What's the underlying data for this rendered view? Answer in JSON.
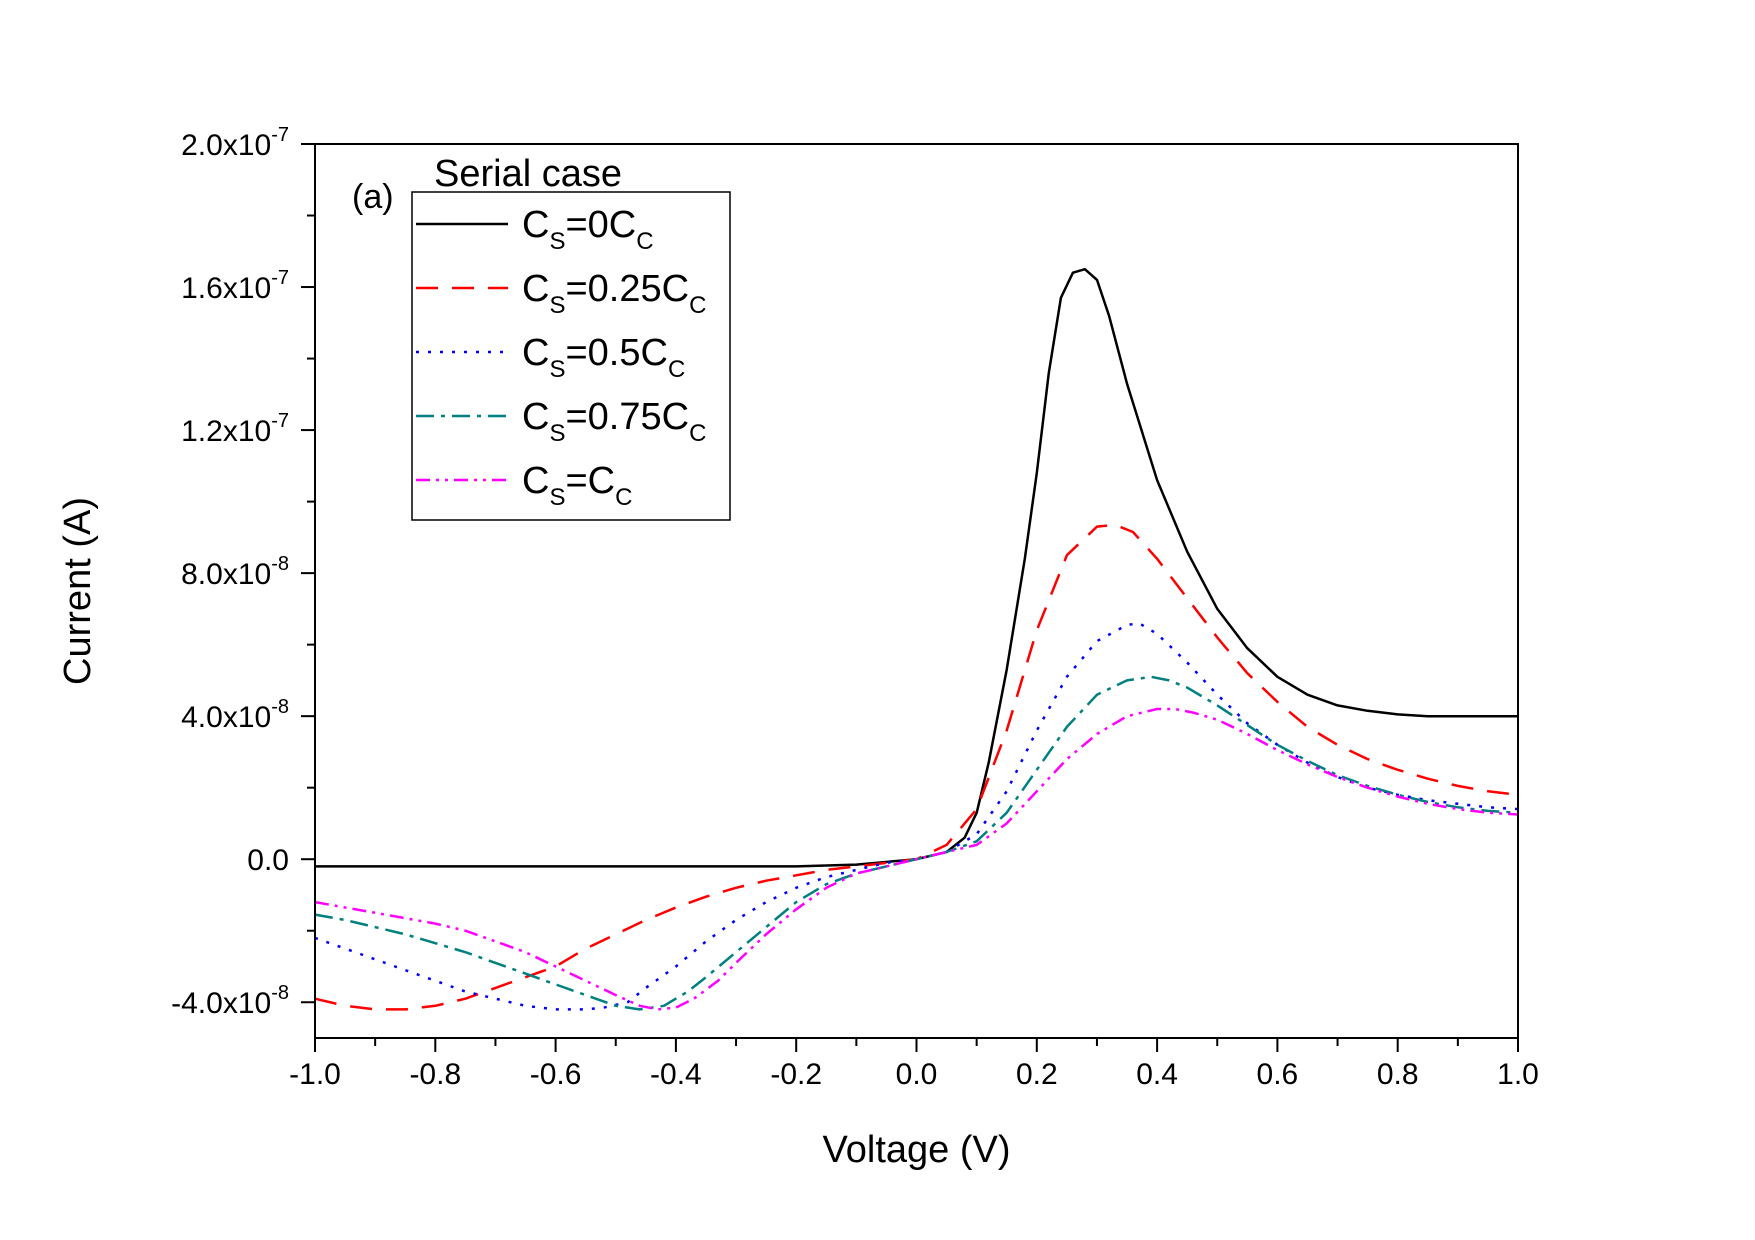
{
  "chart_data": {
    "type": "line",
    "panel_label": "(a)",
    "xlabel": "Voltage (V)",
    "ylabel": "Current (A)",
    "xlim": [
      -1.0,
      1.0
    ],
    "ylim": [
      -5e-08,
      2e-07
    ],
    "x_ticks": [
      -1.0,
      -0.8,
      -0.6,
      -0.4,
      -0.2,
      0.0,
      0.2,
      0.4,
      0.6,
      0.8,
      1.0
    ],
    "x_tick_labels": [
      "-1.0",
      "-0.8",
      "-0.6",
      "-0.4",
      "-0.2",
      "0.0",
      "0.2",
      "0.4",
      "0.6",
      "0.8",
      "1.0"
    ],
    "y_ticks": [
      -4e-08,
      0.0,
      4e-08,
      8e-08,
      1.2e-07,
      1.6e-07,
      2e-07
    ],
    "y_tick_labels": [
      {
        "mantissa": "-4.0x10",
        "exp": "-8"
      },
      {
        "mantissa": "0.0",
        "exp": ""
      },
      {
        "mantissa": "4.0x10",
        "exp": "-8"
      },
      {
        "mantissa": "8.0x10",
        "exp": "-8"
      },
      {
        "mantissa": "1.2x10",
        "exp": "-7"
      },
      {
        "mantissa": "1.6x10",
        "exp": "-7"
      },
      {
        "mantissa": "2.0x10",
        "exp": "-7"
      }
    ],
    "legend": {
      "title": "Serial case",
      "position": "top-left",
      "entries": [
        {
          "prefix": "C",
          "sub1": "S",
          "mid": "=0C",
          "sub2": "C"
        },
        {
          "prefix": "C",
          "sub1": "S",
          "mid": "=0.25C",
          "sub2": "C"
        },
        {
          "prefix": "C",
          "sub1": "S",
          "mid": "=0.5C",
          "sub2": "C"
        },
        {
          "prefix": "C",
          "sub1": "S",
          "mid": "=0.75C",
          "sub2": "C"
        },
        {
          "prefix": "C",
          "sub1": "S",
          "mid": "=C",
          "sub2": "C"
        }
      ]
    },
    "series": [
      {
        "name": "CS=0CC",
        "color": "#000000",
        "dash": "solid",
        "x": [
          -1.0,
          -0.9,
          -0.8,
          -0.7,
          -0.6,
          -0.5,
          -0.4,
          -0.3,
          -0.2,
          -0.1,
          0.0,
          0.05,
          0.08,
          0.1,
          0.12,
          0.15,
          0.18,
          0.2,
          0.22,
          0.24,
          0.26,
          0.28,
          0.3,
          0.32,
          0.35,
          0.4,
          0.45,
          0.5,
          0.55,
          0.6,
          0.65,
          0.7,
          0.75,
          0.8,
          0.85,
          0.9,
          0.95,
          1.0
        ],
        "y": [
          -2e-09,
          -2e-09,
          -2e-09,
          -2e-09,
          -2e-09,
          -2e-09,
          -2e-09,
          -2e-09,
          -2e-09,
          -1.5e-09,
          0,
          2e-09,
          6e-09,
          1.3e-08,
          2.7e-08,
          5.3e-08,
          8.4e-08,
          1.08e-07,
          1.36e-07,
          1.57e-07,
          1.64e-07,
          1.65e-07,
          1.62e-07,
          1.52e-07,
          1.33e-07,
          1.06e-07,
          8.6e-08,
          7e-08,
          5.9e-08,
          5.1e-08,
          4.6e-08,
          4.3e-08,
          4.15e-08,
          4.05e-08,
          4e-08,
          4e-08,
          4e-08,
          4e-08
        ]
      },
      {
        "name": "CS=0.25CC",
        "color": "#ff0000",
        "dash": "22 14",
        "x": [
          -1.0,
          -0.95,
          -0.9,
          -0.85,
          -0.8,
          -0.75,
          -0.7,
          -0.65,
          -0.6,
          -0.55,
          -0.5,
          -0.45,
          -0.4,
          -0.35,
          -0.3,
          -0.25,
          -0.2,
          -0.15,
          -0.1,
          -0.05,
          0.0,
          0.05,
          0.1,
          0.15,
          0.2,
          0.25,
          0.3,
          0.33,
          0.36,
          0.4,
          0.45,
          0.5,
          0.55,
          0.6,
          0.65,
          0.7,
          0.75,
          0.8,
          0.85,
          0.9,
          0.95,
          1.0
        ],
        "y": [
          -3.9e-08,
          -4.1e-08,
          -4.2e-08,
          -4.2e-08,
          -4.1e-08,
          -3.9e-08,
          -3.6e-08,
          -3.3e-08,
          -3e-08,
          -2.5e-08,
          -2.1e-08,
          -1.7e-08,
          -1.35e-08,
          -1.05e-08,
          -8e-09,
          -6e-09,
          -4.5e-09,
          -3e-09,
          -2e-09,
          -1e-09,
          0,
          4e-09,
          1.4e-08,
          3.6e-08,
          6.4e-08,
          8.5e-08,
          9.3e-08,
          9.35e-08,
          9.15e-08,
          8.4e-08,
          7.3e-08,
          6.2e-08,
          5.2e-08,
          4.4e-08,
          3.7e-08,
          3.2e-08,
          2.8e-08,
          2.5e-08,
          2.25e-08,
          2.05e-08,
          1.9e-08,
          1.8e-08
        ]
      },
      {
        "name": "CS=0.5CC",
        "color": "#0000ff",
        "dash": "3 9",
        "x": [
          -1.0,
          -0.95,
          -0.9,
          -0.85,
          -0.8,
          -0.75,
          -0.7,
          -0.65,
          -0.6,
          -0.55,
          -0.52,
          -0.48,
          -0.45,
          -0.4,
          -0.35,
          -0.3,
          -0.25,
          -0.2,
          -0.15,
          -0.1,
          -0.05,
          0.0,
          0.05,
          0.1,
          0.15,
          0.2,
          0.25,
          0.3,
          0.35,
          0.37,
          0.4,
          0.45,
          0.5,
          0.55,
          0.6,
          0.65,
          0.7,
          0.75,
          0.8,
          0.85,
          0.9,
          0.95,
          1.0
        ],
        "y": [
          -2.2e-08,
          -2.5e-08,
          -2.8e-08,
          -3.1e-08,
          -3.4e-08,
          -3.7e-08,
          -3.9e-08,
          -4.1e-08,
          -4.2e-08,
          -4.2e-08,
          -4.15e-08,
          -4e-08,
          -3.6e-08,
          -3e-08,
          -2.3e-08,
          -1.7e-08,
          -1.2e-08,
          -8e-09,
          -5e-09,
          -3e-09,
          -1e-09,
          0,
          2e-09,
          7e-09,
          1.9e-08,
          3.6e-08,
          5.1e-08,
          6.1e-08,
          6.55e-08,
          6.6e-08,
          6.3e-08,
          5.5e-08,
          4.6e-08,
          3.8e-08,
          3.2e-08,
          2.7e-08,
          2.3e-08,
          2e-08,
          1.8e-08,
          1.65e-08,
          1.55e-08,
          1.45e-08,
          1.4e-08
        ]
      },
      {
        "name": "CS=0.75CC",
        "color": "#008080",
        "dash": "18 7 4 7",
        "x": [
          -1.0,
          -0.95,
          -0.9,
          -0.85,
          -0.8,
          -0.75,
          -0.7,
          -0.65,
          -0.6,
          -0.55,
          -0.5,
          -0.46,
          -0.42,
          -0.38,
          -0.35,
          -0.3,
          -0.25,
          -0.2,
          -0.15,
          -0.1,
          -0.05,
          0.0,
          0.05,
          0.1,
          0.15,
          0.2,
          0.25,
          0.3,
          0.35,
          0.39,
          0.42,
          0.45,
          0.5,
          0.55,
          0.6,
          0.65,
          0.7,
          0.75,
          0.8,
          0.85,
          0.9,
          0.95,
          1.0
        ],
        "y": [
          -1.55e-08,
          -1.7e-08,
          -1.9e-08,
          -2.1e-08,
          -2.35e-08,
          -2.6e-08,
          -2.9e-08,
          -3.2e-08,
          -3.5e-08,
          -3.8e-08,
          -4.1e-08,
          -4.2e-08,
          -4.1e-08,
          -3.7e-08,
          -3.3e-08,
          -2.6e-08,
          -1.9e-08,
          -1.2e-08,
          -7e-09,
          -4e-09,
          -2e-09,
          0,
          2e-09,
          5e-09,
          1.3e-08,
          2.5e-08,
          3.7e-08,
          4.6e-08,
          5e-08,
          5.1e-08,
          5e-08,
          4.8e-08,
          4.3e-08,
          3.75e-08,
          3.2e-08,
          2.75e-08,
          2.35e-08,
          2.05e-08,
          1.8e-08,
          1.6e-08,
          1.45e-08,
          1.35e-08,
          1.3e-08
        ]
      },
      {
        "name": "CS=CC",
        "color": "#ff00ff",
        "dash": "14 6 3 6 3 6",
        "x": [
          -1.0,
          -0.95,
          -0.9,
          -0.85,
          -0.8,
          -0.75,
          -0.7,
          -0.65,
          -0.6,
          -0.55,
          -0.5,
          -0.46,
          -0.43,
          -0.4,
          -0.37,
          -0.33,
          -0.3,
          -0.25,
          -0.2,
          -0.15,
          -0.1,
          -0.05,
          0.0,
          0.05,
          0.1,
          0.15,
          0.2,
          0.25,
          0.3,
          0.35,
          0.4,
          0.43,
          0.46,
          0.5,
          0.55,
          0.6,
          0.65,
          0.7,
          0.75,
          0.8,
          0.85,
          0.9,
          0.95,
          1.0
        ],
        "y": [
          -1.2e-08,
          -1.35e-08,
          -1.5e-08,
          -1.65e-08,
          -1.8e-08,
          -2e-08,
          -2.3e-08,
          -2.6e-08,
          -3e-08,
          -3.4e-08,
          -3.8e-08,
          -4.1e-08,
          -4.2e-08,
          -4.15e-08,
          -3.9e-08,
          -3.4e-08,
          -2.9e-08,
          -2.1e-08,
          -1.4e-08,
          -8e-09,
          -4e-09,
          -2e-09,
          0,
          2e-09,
          4e-09,
          1e-08,
          1.9e-08,
          2.8e-08,
          3.5e-08,
          4e-08,
          4.2e-08,
          4.2e-08,
          4.1e-08,
          3.9e-08,
          3.5e-08,
          3.05e-08,
          2.65e-08,
          2.3e-08,
          2e-08,
          1.75e-08,
          1.55e-08,
          1.4e-08,
          1.3e-08,
          1.25e-08
        ]
      }
    ]
  }
}
